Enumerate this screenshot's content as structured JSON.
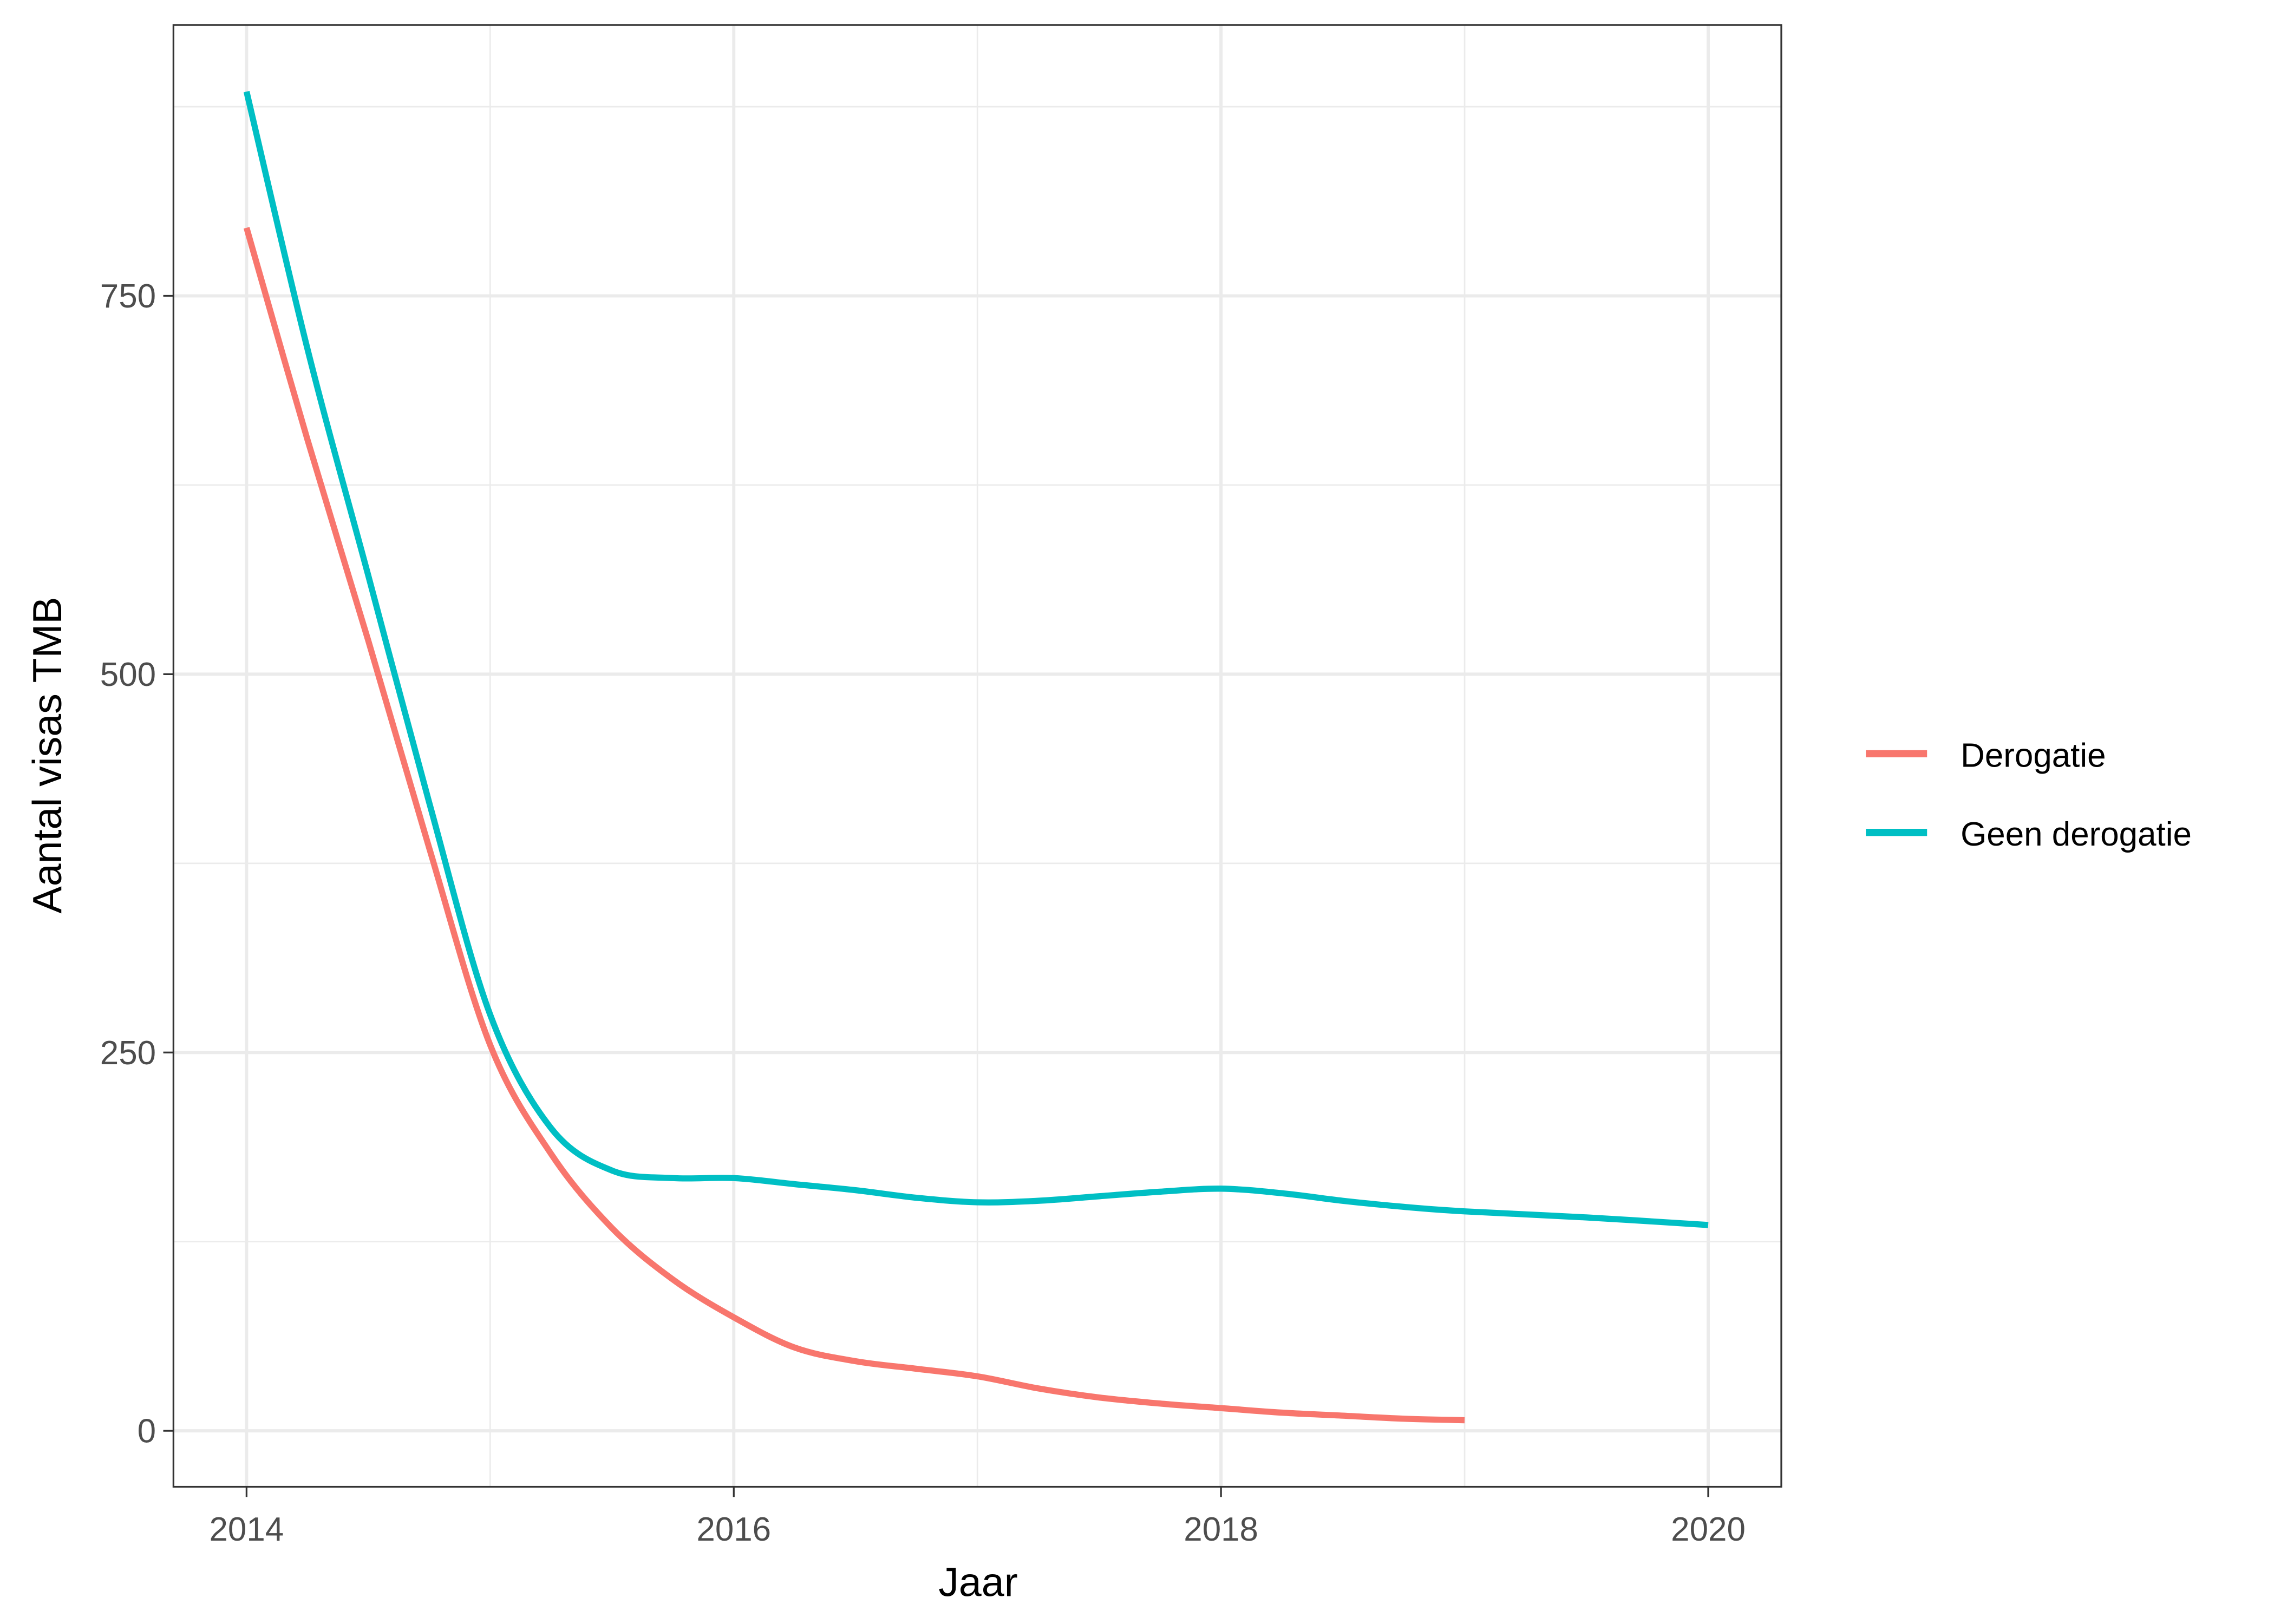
{
  "chart_data": {
    "type": "line",
    "title": "",
    "xlabel": "Jaar",
    "ylabel": "Aantal visas TMB",
    "xlim": [
      2013.7,
      2020.3
    ],
    "ylim": [
      -37,
      929
    ],
    "x_ticks": [
      2014,
      2016,
      2018,
      2020
    ],
    "x_tick_labels": [
      "2014",
      "2016",
      "2018",
      "2020"
    ],
    "y_ticks": [
      0,
      250,
      500,
      750
    ],
    "y_tick_labels": [
      "0",
      "250",
      "500",
      "750"
    ],
    "grid": true,
    "legend_position": "right",
    "series": [
      {
        "name": "Derogatie",
        "color": "#F8766D",
        "x": [
          2014,
          2014.25,
          2014.5,
          2014.75,
          2015,
          2015.25,
          2015.5,
          2015.75,
          2016,
          2016.25,
          2016.5,
          2016.75,
          2017,
          2017.25,
          2017.5,
          2017.75,
          2018,
          2018.25,
          2018.5,
          2018.75,
          2019
        ],
        "y": [
          795,
          655,
          522,
          385,
          255,
          183,
          134,
          100,
          75,
          55,
          46,
          41,
          36,
          28,
          22,
          18,
          15,
          12,
          10,
          8,
          7
        ]
      },
      {
        "name": "Geen derogatie",
        "color": "#00BFC4",
        "x": [
          2014,
          2014.25,
          2014.5,
          2014.75,
          2015,
          2015.25,
          2015.5,
          2015.75,
          2016,
          2016.25,
          2016.5,
          2016.75,
          2017,
          2017.25,
          2017.5,
          2017.75,
          2018,
          2018.25,
          2018.5,
          2018.75,
          2019,
          2019.5,
          2020
        ],
        "y": [
          885,
          715,
          565,
          415,
          275,
          200,
          172,
          167,
          167,
          163,
          159,
          154,
          151,
          152,
          155,
          158,
          160,
          157,
          152,
          148,
          145,
          141,
          136
        ]
      }
    ]
  }
}
